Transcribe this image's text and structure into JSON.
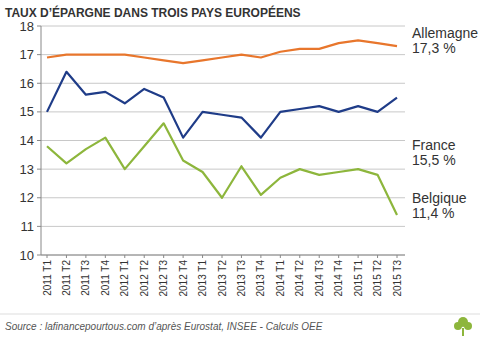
{
  "chart_data": {
    "type": "line",
    "title": "TAUX D’ÉPARGNE DANS TROIS PAYS EUROPÉENS",
    "source": "Source : lafinancepourtous.com d’après Eurostat, INSEE - Calculs OEE",
    "categories": [
      "2011 T1",
      "2011 T2",
      "2011 T3",
      "2011 T4",
      "2012 T1",
      "2012 T2",
      "2012 T3",
      "2012 T4",
      "2013 T1",
      "2013 T2",
      "2013 T3",
      "2013 T4",
      "2014 T1",
      "2014 T2",
      "2014 T3",
      "2014 T4",
      "2015 T1",
      "2015 T2",
      "2015 T3"
    ],
    "series": [
      {
        "name": "Allemagne",
        "color": "#e8762c",
        "values": [
          16.9,
          17.0,
          17.0,
          17.0,
          17.0,
          16.9,
          16.8,
          16.7,
          16.8,
          16.9,
          17.0,
          16.9,
          17.1,
          17.2,
          17.2,
          17.4,
          17.5,
          17.4,
          17.3
        ],
        "value_labels": [
          null,
          null,
          null,
          null,
          null,
          null,
          null,
          null,
          null,
          null,
          null,
          null,
          null,
          null,
          null,
          null,
          null,
          null,
          "17,3 %"
        ]
      },
      {
        "name": "France",
        "color": "#1f3c88",
        "values": [
          15.0,
          16.4,
          15.6,
          15.7,
          15.3,
          15.8,
          15.5,
          14.1,
          15.0,
          14.9,
          14.8,
          14.1,
          15.0,
          15.1,
          15.2,
          15.0,
          15.2,
          15.0,
          15.5
        ],
        "value_labels": [
          null,
          null,
          null,
          null,
          null,
          null,
          null,
          null,
          null,
          null,
          null,
          null,
          null,
          null,
          null,
          null,
          null,
          null,
          "15,5 %"
        ]
      },
      {
        "name": "Belgique",
        "color": "#8db63c",
        "values": [
          13.8,
          13.2,
          13.7,
          14.1,
          13.0,
          13.8,
          14.6,
          13.3,
          12.9,
          12.0,
          13.1,
          12.1,
          12.7,
          13.0,
          12.8,
          12.9,
          13.0,
          12.8,
          11.4
        ],
        "value_labels": [
          null,
          null,
          null,
          null,
          null,
          null,
          null,
          null,
          null,
          null,
          null,
          null,
          null,
          null,
          null,
          null,
          null,
          null,
          "11,4 %"
        ]
      }
    ],
    "ylim": [
      10,
      18
    ],
    "yticks": [
      10,
      11,
      12,
      13,
      14,
      15,
      16,
      17,
      18
    ],
    "grid": true
  }
}
